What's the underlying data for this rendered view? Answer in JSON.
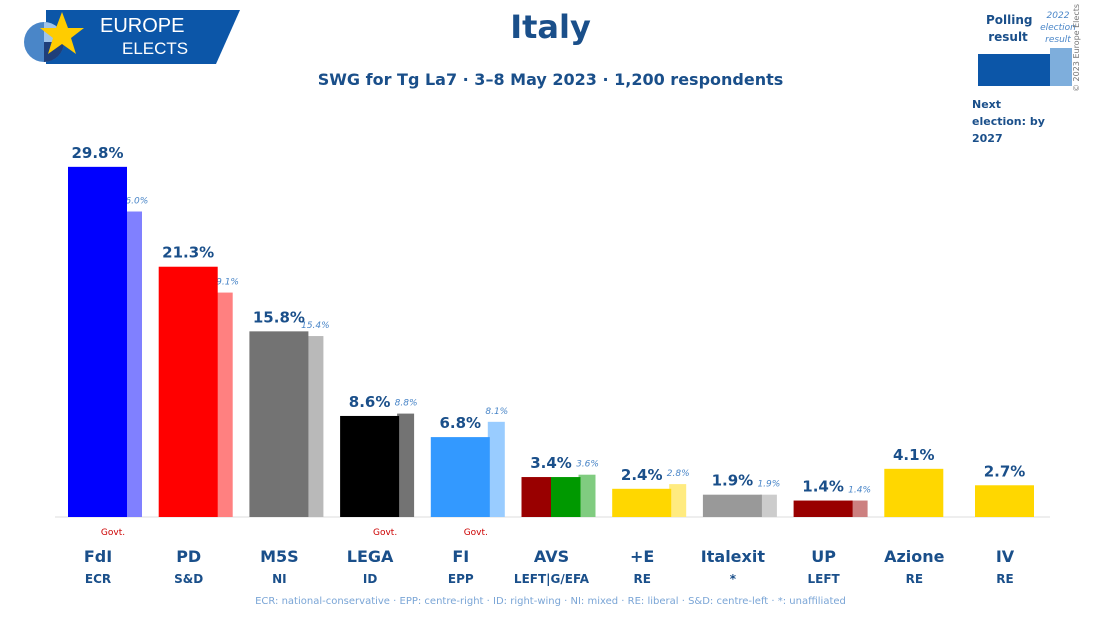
{
  "brand": {
    "line1": "EUROPE",
    "line2": "ELECTS"
  },
  "header": {
    "title": "Italy",
    "subtitle": "SWG for Tg La7 · 3–8 May 2023 · 1,200 respondents"
  },
  "legend": {
    "polling_label": "Polling result",
    "election_label": "2022 election result",
    "next_election": "Next election: by 2027",
    "copyright": "© 2023 Europe Elects",
    "colors": {
      "polling": "#0c56a8",
      "election": "#7eaedc"
    }
  },
  "footnote": "ECR: national-conservative · EPP: centre-right · ID: right-wing · NI: mixed · RE: liberal · S&D: centre-left · *: unaffiliated",
  "chart_data": {
    "type": "bar",
    "title": "Italy",
    "unit": "%",
    "series": [
      {
        "name": "Polling result",
        "values": [
          29.8,
          21.3,
          15.8,
          8.6,
          6.8,
          3.4,
          2.4,
          1.9,
          1.4,
          4.1,
          2.7
        ]
      },
      {
        "name": "2022 election result",
        "values": [
          26.0,
          19.1,
          15.4,
          8.8,
          8.1,
          3.6,
          2.8,
          1.9,
          1.4,
          null,
          null
        ]
      }
    ],
    "parties": [
      {
        "name": "FdI",
        "group": "ECR",
        "poll": 29.8,
        "prev": 26.0,
        "poll_label": "29.8%",
        "prev_label": "26.0%",
        "govt": "Govt.",
        "color": "#0000ff",
        "prev_color": "#8080ff"
      },
      {
        "name": "PD",
        "group": "S&D",
        "poll": 21.3,
        "prev": 19.1,
        "poll_label": "21.3%",
        "prev_label": "19.1%",
        "govt": "",
        "color": "#ff0000",
        "prev_color": "#ff8080"
      },
      {
        "name": "M5S",
        "group": "NI",
        "poll": 15.8,
        "prev": 15.4,
        "poll_label": "15.8%",
        "prev_label": "15.4%",
        "govt": "",
        "color": "#737373",
        "prev_color": "#b9b9b9"
      },
      {
        "name": "LEGA",
        "group": "ID",
        "poll": 8.6,
        "prev": 8.8,
        "poll_label": "8.6%",
        "prev_label": "8.8%",
        "govt": "Govt.",
        "color": "#000000",
        "prev_color": "#737373"
      },
      {
        "name": "FI",
        "group": "EPP",
        "poll": 6.8,
        "prev": 8.1,
        "poll_label": "6.8%",
        "prev_label": "8.1%",
        "govt": "Govt.",
        "color": "#3399ff",
        "prev_color": "#99ccff"
      },
      {
        "name": "AVS",
        "group": "LEFT|G/EFA",
        "poll": 3.4,
        "prev": 3.6,
        "poll_label": "3.4%",
        "prev_label": "3.6%",
        "govt": "",
        "color": "#990000",
        "color2": "#009900",
        "prev_color": "#80cc80"
      },
      {
        "name": "+E",
        "group": "RE",
        "poll": 2.4,
        "prev": 2.8,
        "poll_label": "2.4%",
        "prev_label": "2.8%",
        "govt": "",
        "color": "#ffd700",
        "prev_color": "#ffeb80"
      },
      {
        "name": "Italexit",
        "group": "*",
        "poll": 1.9,
        "prev": 1.9,
        "poll_label": "1.9%",
        "prev_label": "1.9%",
        "govt": "",
        "color": "#999999",
        "prev_color": "#cccccc"
      },
      {
        "name": "UP",
        "group": "LEFT",
        "poll": 1.4,
        "prev": 1.4,
        "poll_label": "1.4%",
        "prev_label": "1.4%",
        "govt": "",
        "color": "#990000",
        "prev_color": "#cc8080"
      },
      {
        "name": "Azione",
        "group": "RE",
        "poll": 4.1,
        "prev": null,
        "poll_label": "4.1%",
        "prev_label": "",
        "govt": "",
        "color": "#ffd700",
        "prev_color": ""
      },
      {
        "name": "IV",
        "group": "RE",
        "poll": 2.7,
        "prev": null,
        "poll_label": "2.7%",
        "prev_label": "",
        "govt": "",
        "color": "#ffd700",
        "prev_color": ""
      }
    ]
  }
}
